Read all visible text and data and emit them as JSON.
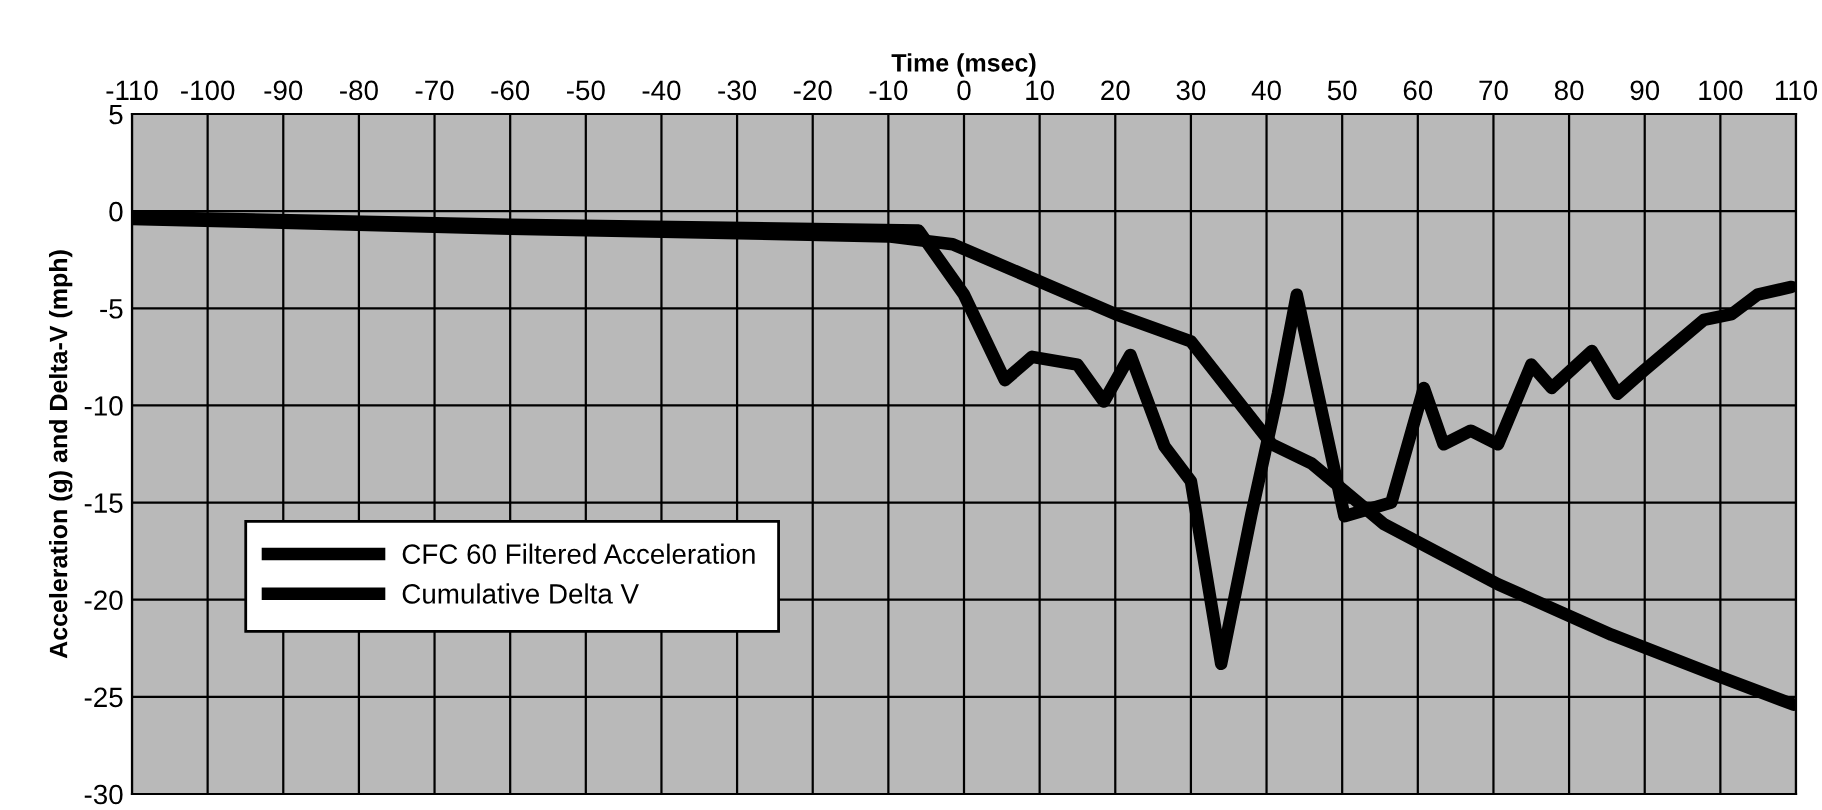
{
  "chart_data": {
    "type": "line",
    "xlabel": "Time (msec)",
    "ylabel": "Acceleration (g) and Delta-V (mph)",
    "xlim": [
      -110,
      110
    ],
    "xticks": [
      -110,
      -100,
      -90,
      -80,
      -70,
      -60,
      -50,
      -40,
      -30,
      -20,
      -10,
      0,
      10,
      20,
      30,
      40,
      50,
      60,
      70,
      80,
      90,
      100,
      110
    ],
    "ylim": [
      -30,
      5
    ],
    "yticks": [
      -30,
      -25,
      -20,
      -15,
      -10,
      -5,
      0,
      5
    ],
    "grid": true,
    "legend": "left",
    "marker": "none",
    "series": [
      {
        "name": "CFC 60 Filtered Acceleration",
        "color": "#000000",
        "line_style": "solid",
        "x": [
          -110,
          -60,
          -6,
          0,
          5.4,
          9,
          15,
          18.5,
          22,
          26.5,
          30,
          34,
          38,
          41.5,
          44,
          46.3,
          50.3,
          56.5,
          60.8,
          63.4,
          67,
          70.6,
          75,
          77.7,
          83,
          86.4,
          89.9,
          97.8,
          101.5,
          104.9,
          109.4
        ],
        "values": [
          -0.3,
          -0.7,
          -1.0,
          -4.3,
          -8.7,
          -7.5,
          -7.9,
          -9.8,
          -7.4,
          -12.1,
          -13.9,
          -23.3,
          -15.6,
          -9.4,
          -4.3,
          -8.5,
          -15.7,
          -15.0,
          -9.1,
          -12.0,
          -11.3,
          -12.0,
          -7.9,
          -9.1,
          -7.2,
          -9.4,
          -8.2,
          -5.6,
          -5.3,
          -4.3,
          -3.9
        ]
      },
      {
        "name": "Cumulative Delta V",
        "color": "#000000",
        "line_style": "solid",
        "x": [
          -110,
          -60,
          -10,
          -1.5,
          20,
          30,
          40.7,
          46,
          55.5,
          70.6,
          85.6,
          98.8,
          109.7
        ],
        "values": [
          -0.4,
          -0.9,
          -1.3,
          -1.7,
          -5.3,
          -6.7,
          -12.0,
          -13.0,
          -16.1,
          -19.2,
          -21.8,
          -23.8,
          -25.4
        ]
      }
    ]
  }
}
